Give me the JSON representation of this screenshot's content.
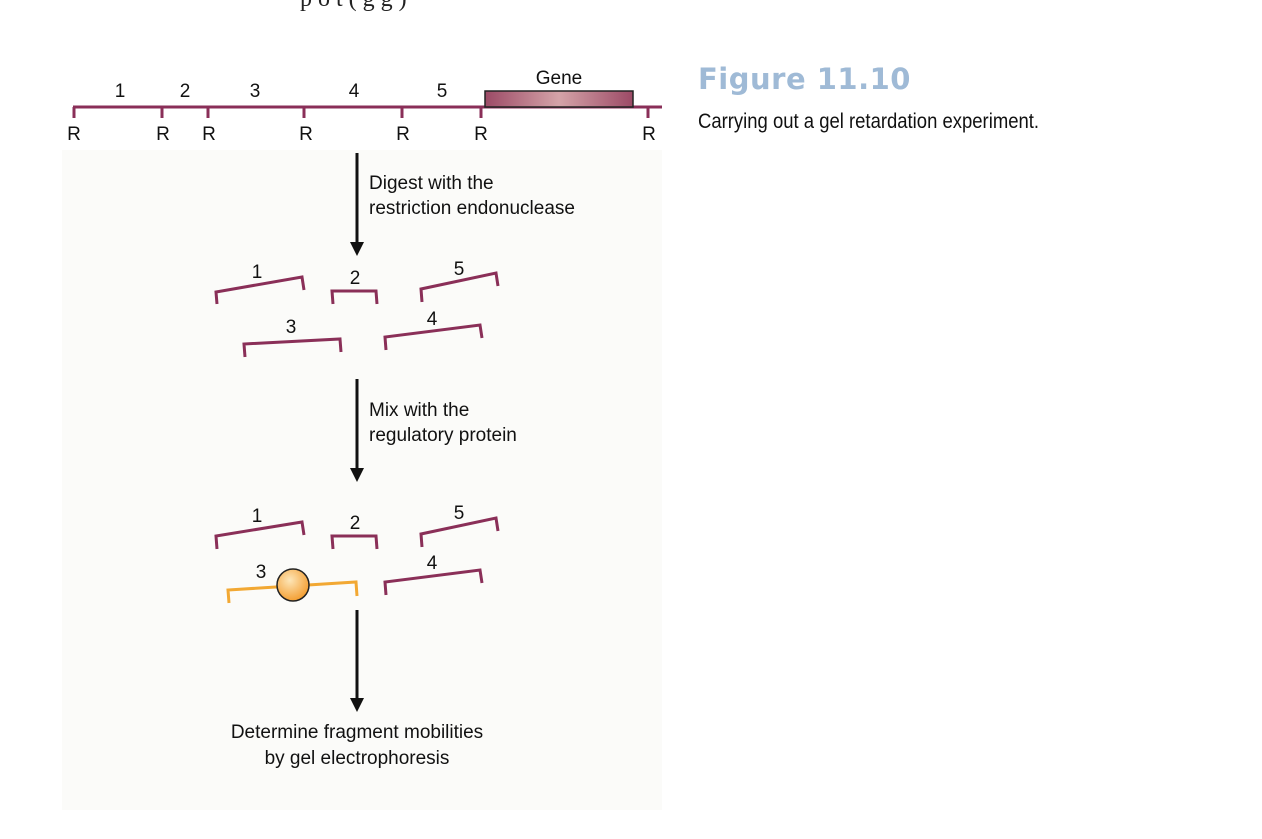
{
  "page_top_fragment": "p o     t  (                            g    g                                     )",
  "figure": {
    "title": "Figure 11.10",
    "caption": "Carrying out a gel retardation experiment."
  },
  "colors": {
    "dna": "#8a2f58",
    "bound_fragment": "#f2a833",
    "protein_fill": "#f6b24a",
    "gene_fill": "#c98a96",
    "figure_title": "#9fbad6",
    "panel_bg": "#fbfbf9"
  },
  "diagram": {
    "gene_label": "Gene",
    "site_label": "R",
    "segment_numbers": [
      "1",
      "2",
      "3",
      "4",
      "5"
    ],
    "fragment_numbers": [
      "1",
      "2",
      "3",
      "4",
      "5"
    ],
    "bound_fragment_number": "3",
    "steps": [
      {
        "line1": "Digest with the",
        "line2": "restriction endonuclease"
      },
      {
        "line1": "Mix with the",
        "line2": "regulatory protein"
      },
      {
        "line1": "Determine fragment mobilities",
        "line2": "by gel electrophoresis"
      }
    ]
  }
}
